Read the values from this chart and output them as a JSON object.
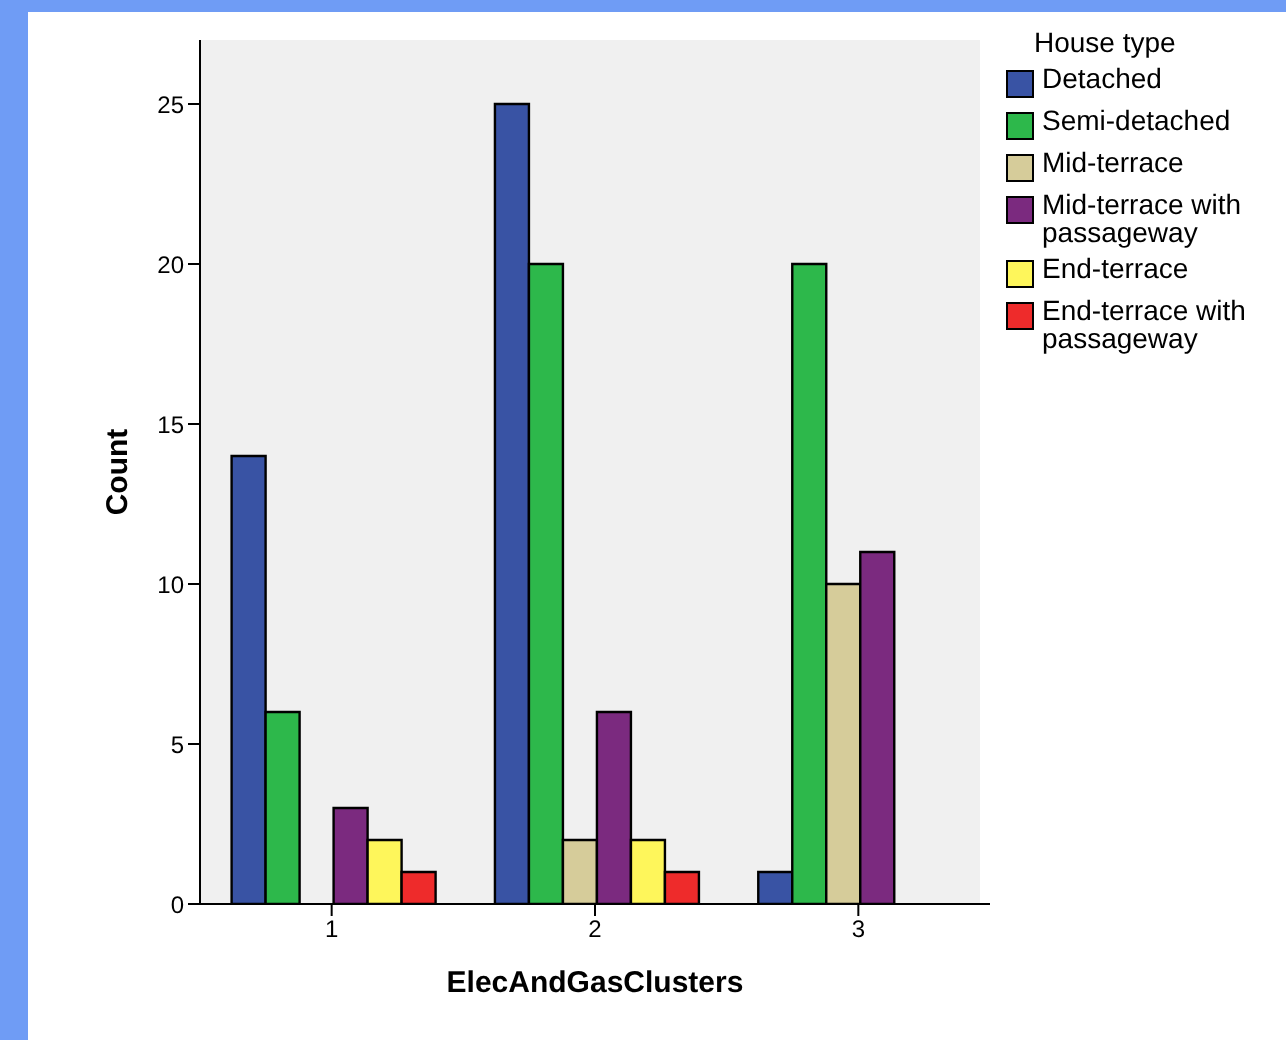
{
  "chart_data": {
    "type": "bar",
    "xlabel": "ElecAndGasClusters",
    "ylabel": "Count",
    "legend_title": "House type",
    "categories": [
      "1",
      "2",
      "3"
    ],
    "series": [
      {
        "name": "Detached",
        "color": "#3953a4",
        "values": [
          14,
          25,
          1
        ]
      },
      {
        "name": "Semi-detached",
        "color": "#2db84b",
        "values": [
          6,
          20,
          20
        ]
      },
      {
        "name": "Mid-terrace",
        "color": "#d6cc9a",
        "values": [
          0,
          2,
          10
        ]
      },
      {
        "name": "Mid-terrace with passageway",
        "color": "#7b2a7f",
        "values": [
          3,
          6,
          11
        ]
      },
      {
        "name": "End-terrace",
        "color": "#fef65b",
        "values": [
          2,
          2,
          0
        ]
      },
      {
        "name": "End-terrace with passageway",
        "color": "#ee2b2b",
        "values": [
          1,
          1,
          0
        ]
      }
    ],
    "ylim": [
      0,
      27
    ],
    "yticks": [
      0,
      5,
      10,
      15,
      20,
      25
    ],
    "grid": false,
    "legend": "top right"
  }
}
